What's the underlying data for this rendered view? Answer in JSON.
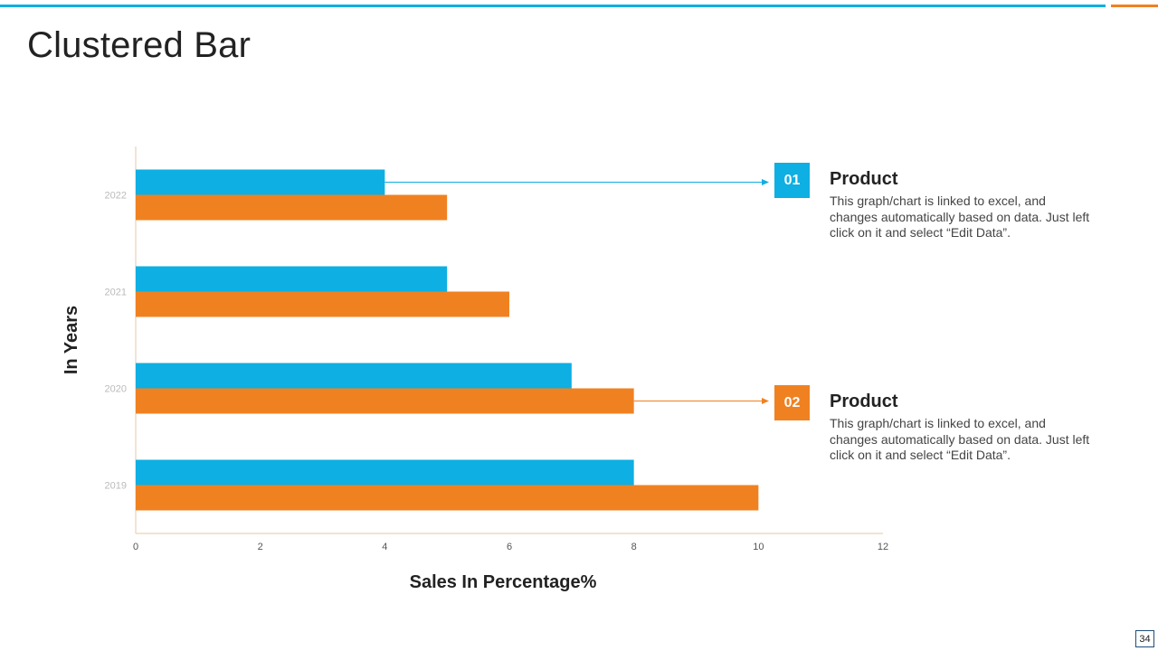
{
  "title": "Clustered Bar",
  "colors": {
    "blue": "#0EAFE2",
    "orange": "#F08121",
    "axis": "#E3C9A8"
  },
  "chart_data": {
    "type": "bar",
    "orientation": "horizontal",
    "categories": [
      "2022",
      "2021",
      "2020",
      "2019"
    ],
    "series": [
      {
        "name": "Product 01",
        "values": [
          4,
          5,
          7,
          8
        ]
      },
      {
        "name": "Product 02",
        "values": [
          5,
          6,
          8,
          10
        ]
      }
    ],
    "xlabel": "Sales In Percentage%",
    "ylabel": "In Years",
    "xlim": [
      0,
      12
    ],
    "xticks": [
      0,
      2,
      4,
      6,
      8,
      10,
      12
    ],
    "grid": false
  },
  "callouts": [
    {
      "number": "01",
      "heading": "Product",
      "text": "This graph/chart is linked to excel, and changes automatically based on data. Just left click on it and select “Edit Data”."
    },
    {
      "number": "02",
      "heading": "Product",
      "text": "This graph/chart is linked to excel, and changes automatically based on data. Just left click on it and select “Edit Data”."
    }
  ],
  "page_number": "34"
}
